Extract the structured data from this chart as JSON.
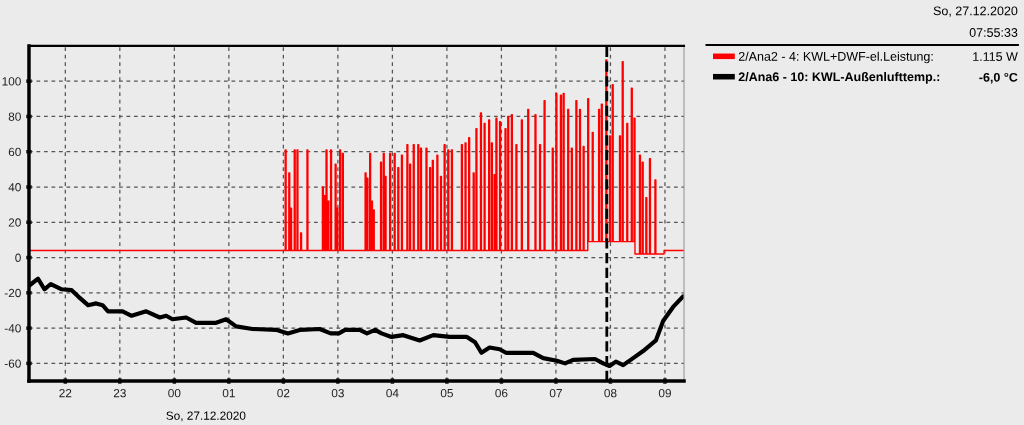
{
  "chart_data": {
    "type": "line",
    "xlabel": "So, 27.12.2020",
    "xlim": [
      "2020-12-26T21:20",
      "2020-12-27T09:21"
    ],
    "xticks": [
      {
        "value": "2020-12-26T22:00",
        "label": "22"
      },
      {
        "value": "2020-12-26T23:00",
        "label": "23"
      },
      {
        "value": "2020-12-27T00:00",
        "label": "00"
      },
      {
        "value": "2020-12-27T01:00",
        "label": "01"
      },
      {
        "value": "2020-12-27T02:00",
        "label": "02"
      },
      {
        "value": "2020-12-27T03:00",
        "label": "03"
      },
      {
        "value": "2020-12-27T04:00",
        "label": "04"
      },
      {
        "value": "2020-12-27T05:00",
        "label": "05"
      },
      {
        "value": "2020-12-27T06:00",
        "label": "06"
      },
      {
        "value": "2020-12-27T07:00",
        "label": "07"
      },
      {
        "value": "2020-12-27T08:00",
        "label": "08"
      },
      {
        "value": "2020-12-27T09:00",
        "label": "09"
      }
    ],
    "ylim": [
      -70,
      120
    ],
    "yticks": [
      -60,
      -40,
      -20,
      0,
      20,
      40,
      60,
      80,
      100
    ],
    "grid": true,
    "legend": "right",
    "series": [
      {
        "name": "2/Ana2 - 4: KWL+DWF-el.Leistung:",
        "color": "#ff0000",
        "type": "step",
        "x": [
          "2020-12-26T21:20",
          "2020-12-27T02:02",
          "2020-12-27T02:03",
          "2020-12-27T02:06",
          "2020-12-27T02:07",
          "2020-12-27T02:08",
          "2020-12-27T02:09",
          "2020-12-27T02:12",
          "2020-12-27T02:13",
          "2020-12-27T02:15",
          "2020-12-27T02:16",
          "2020-12-27T02:19",
          "2020-12-27T02:20",
          "2020-12-27T02:26",
          "2020-12-27T02:27",
          "2020-12-27T02:43",
          "2020-12-27T02:44",
          "2020-12-27T02:45",
          "2020-12-27T02:46",
          "2020-12-27T02:47",
          "2020-12-27T02:48",
          "2020-12-27T02:49",
          "2020-12-27T02:50",
          "2020-12-27T02:52",
          "2020-12-27T02:53",
          "2020-12-27T02:57",
          "2020-12-27T02:58",
          "2020-12-27T02:59",
          "2020-12-27T03:00",
          "2020-12-27T03:02",
          "2020-12-27T03:03",
          "2020-12-27T03:05",
          "2020-12-27T03:06",
          "2020-12-27T03:30",
          "2020-12-27T03:31",
          "2020-12-27T03:32",
          "2020-12-27T03:33",
          "2020-12-27T03:35",
          "2020-12-27T03:36",
          "2020-12-27T03:37",
          "2020-12-27T03:38",
          "2020-12-27T03:39",
          "2020-12-27T03:40",
          "2020-12-27T03:47",
          "2020-12-27T03:48",
          "2020-12-27T03:50",
          "2020-12-27T03:51",
          "2020-12-27T03:52",
          "2020-12-27T03:53",
          "2020-12-27T03:57",
          "2020-12-27T03:58",
          "2020-12-27T04:02",
          "2020-12-27T04:03",
          "2020-12-27T04:06",
          "2020-12-27T04:07",
          "2020-12-27T04:10",
          "2020-12-27T04:11",
          "2020-12-27T04:16",
          "2020-12-27T04:17",
          "2020-12-27T04:19",
          "2020-12-27T04:20",
          "2020-12-27T04:23",
          "2020-12-27T04:24",
          "2020-12-27T04:28",
          "2020-12-27T04:29",
          "2020-12-27T04:31",
          "2020-12-27T04:32",
          "2020-12-27T04:37",
          "2020-12-27T04:38",
          "2020-12-27T04:41",
          "2020-12-27T04:42",
          "2020-12-27T04:44",
          "2020-12-27T04:45",
          "2020-12-27T04:49",
          "2020-12-27T04:50",
          "2020-12-27T04:53",
          "2020-12-27T04:54",
          "2020-12-27T04:57",
          "2020-12-27T04:58",
          "2020-12-27T05:01",
          "2020-12-27T05:02",
          "2020-12-27T05:05",
          "2020-12-27T05:06",
          "2020-12-27T05:16",
          "2020-12-27T05:17",
          "2020-12-27T05:20",
          "2020-12-27T05:21",
          "2020-12-27T05:24",
          "2020-12-27T05:25",
          "2020-12-27T05:29",
          "2020-12-27T05:30",
          "2020-12-27T05:32",
          "2020-12-27T05:33",
          "2020-12-27T05:37",
          "2020-12-27T05:38",
          "2020-12-27T05:41",
          "2020-12-27T05:42",
          "2020-12-27T05:46",
          "2020-12-27T05:47",
          "2020-12-27T05:49",
          "2020-12-27T05:50",
          "2020-12-27T05:52",
          "2020-12-27T05:53",
          "2020-12-27T05:54",
          "2020-12-27T05:55",
          "2020-12-27T05:58",
          "2020-12-27T05:59",
          "2020-12-27T06:04",
          "2020-12-27T06:05",
          "2020-12-27T06:07",
          "2020-12-27T06:08",
          "2020-12-27T06:11",
          "2020-12-27T06:12",
          "2020-12-27T06:16",
          "2020-12-27T06:17",
          "2020-12-27T06:22",
          "2020-12-27T06:23",
          "2020-12-27T06:29",
          "2020-12-27T06:30",
          "2020-12-27T06:37",
          "2020-12-27T06:38",
          "2020-12-27T06:42",
          "2020-12-27T06:43",
          "2020-12-27T06:47",
          "2020-12-27T06:48",
          "2020-12-27T06:56",
          "2020-12-27T06:57",
          "2020-12-27T07:00",
          "2020-12-27T07:01",
          "2020-12-27T07:05",
          "2020-12-27T07:06",
          "2020-12-27T07:08",
          "2020-12-27T07:09",
          "2020-12-27T07:13",
          "2020-12-27T07:14",
          "2020-12-27T07:17",
          "2020-12-27T07:18",
          "2020-12-27T07:22",
          "2020-12-27T07:23",
          "2020-12-27T07:26",
          "2020-12-27T07:27",
          "2020-12-27T07:30",
          "2020-12-27T07:31",
          "2020-12-27T07:35",
          "2020-12-27T07:36",
          "2020-12-27T07:40",
          "2020-12-27T07:41",
          "2020-12-27T07:47",
          "2020-12-27T07:48",
          "2020-12-27T07:50",
          "2020-12-27T07:51",
          "2020-12-27T07:55",
          "2020-12-27T07:56",
          "2020-12-27T07:59",
          "2020-12-27T08:00",
          "2020-12-27T08:02",
          "2020-12-27T08:03",
          "2020-12-27T08:10",
          "2020-12-27T08:11",
          "2020-12-27T08:13",
          "2020-12-27T08:14",
          "2020-12-27T08:18",
          "2020-12-27T08:19",
          "2020-12-27T08:23",
          "2020-12-27T08:24",
          "2020-12-27T08:26",
          "2020-12-27T08:27",
          "2020-12-27T08:32",
          "2020-12-27T08:33",
          "2020-12-27T08:35",
          "2020-12-27T08:36",
          "2020-12-27T08:39",
          "2020-12-27T08:40",
          "2020-12-27T08:43",
          "2020-12-27T08:44",
          "2020-12-27T08:49",
          "2020-12-27T08:50",
          "2020-12-27T08:59",
          "2020-12-27T09:21"
        ],
        "values": [
          4,
          61,
          4,
          48,
          4,
          28,
          4,
          61,
          4,
          61,
          4,
          14,
          4,
          61,
          4,
          40,
          4,
          35,
          4,
          61,
          4,
          32,
          4,
          61,
          4,
          53,
          4,
          28,
          4,
          61,
          4,
          59,
          4,
          48,
          4,
          45,
          4,
          59,
          4,
          32,
          4,
          27,
          4,
          54,
          4,
          59,
          4,
          46,
          4,
          59,
          4,
          59,
          4,
          51,
          4,
          58,
          4,
          64,
          4,
          53,
          4,
          64,
          4,
          64,
          4,
          62,
          4,
          62,
          4,
          51,
          4,
          55,
          4,
          58,
          4,
          46,
          4,
          64,
          4,
          61,
          4,
          61,
          4,
          64,
          4,
          65,
          4,
          68,
          4,
          48,
          4,
          73,
          4,
          82,
          4,
          76,
          4,
          78,
          4,
          65,
          4,
          47,
          4,
          79,
          4,
          77,
          4,
          73,
          4,
          80,
          4,
          81,
          4,
          64,
          4,
          78,
          4,
          84,
          4,
          81,
          4,
          64,
          4,
          89,
          4,
          62,
          4,
          93,
          4,
          92,
          4,
          93,
          4,
          84,
          4,
          62,
          4,
          89,
          4,
          84,
          4,
          63,
          4,
          90,
          9,
          71,
          9,
          84,
          9,
          87,
          9,
          112,
          9,
          69,
          9,
          98,
          9,
          69,
          9,
          111,
          9,
          76,
          9,
          96,
          9,
          79,
          2,
          58,
          2,
          54,
          2,
          34,
          2,
          56,
          2,
          44,
          2,
          4,
          4
        ]
      },
      {
        "name": "2/Ana6 - 10: KWL-Außenlufttemp.:",
        "color": "#000000",
        "x": [
          "2020-12-26T21:20",
          "2020-12-26T21:30",
          "2020-12-26T21:37",
          "2020-12-26T21:44",
          "2020-12-26T21:56",
          "2020-12-26T22:07",
          "2020-12-26T22:14",
          "2020-12-26T22:25",
          "2020-12-26T22:34",
          "2020-12-26T22:41",
          "2020-12-26T22:47",
          "2020-12-26T23:03",
          "2020-12-26T23:13",
          "2020-12-26T23:29",
          "2020-12-26T23:44",
          "2020-12-26T23:51",
          "2020-12-26T23:58",
          "2020-12-27T00:13",
          "2020-12-27T00:24",
          "2020-12-27T00:46",
          "2020-12-27T00:57",
          "2020-12-27T01:08",
          "2020-12-27T01:26",
          "2020-12-27T01:52",
          "2020-12-27T02:05",
          "2020-12-27T02:19",
          "2020-12-27T02:40",
          "2020-12-27T02:52",
          "2020-12-27T03:01",
          "2020-12-27T03:08",
          "2020-12-27T03:24",
          "2020-12-27T03:32",
          "2020-12-27T03:41",
          "2020-12-27T03:48",
          "2020-12-27T03:59",
          "2020-12-27T04:12",
          "2020-12-27T04:30",
          "2020-12-27T04:45",
          "2020-12-27T05:03",
          "2020-12-27T05:22",
          "2020-12-27T05:31",
          "2020-12-27T05:38",
          "2020-12-27T05:47",
          "2020-12-27T05:58",
          "2020-12-27T06:05",
          "2020-12-27T06:35",
          "2020-12-27T06:46",
          "2020-12-27T07:01",
          "2020-12-27T07:10",
          "2020-12-27T07:19",
          "2020-12-27T07:43",
          "2020-12-27T07:52",
          "2020-12-27T07:59",
          "2020-12-27T08:06",
          "2020-12-27T08:14",
          "2020-12-27T08:25",
          "2020-12-27T08:36",
          "2020-12-27T08:50",
          "2020-12-27T08:58",
          "2020-12-27T09:09",
          "2020-12-27T09:20"
        ],
        "values": [
          -16,
          -12,
          -18,
          -15,
          -18,
          -18.5,
          -22,
          -27,
          -26,
          -27,
          -30.5,
          -30.5,
          -33,
          -30.5,
          -34,
          -33,
          -35,
          -34,
          -37,
          -37,
          -35,
          -39,
          -40.5,
          -41,
          -43,
          -41,
          -40.5,
          -43,
          -43,
          -41,
          -41,
          -43,
          -41,
          -43,
          -45,
          -44,
          -47,
          -44,
          -45,
          -45,
          -48,
          -54,
          -51,
          -52,
          -54,
          -54,
          -57,
          -58.5,
          -60,
          -58,
          -57.5,
          -60,
          -61.5,
          -59,
          -61,
          -57,
          -53,
          -47,
          -36,
          -28,
          -22
        ]
      }
    ],
    "ref_lines": [
      {
        "axis": "x",
        "value": "2020-12-27T07:56",
        "color": "#000000",
        "line_style": "dashed"
      }
    ],
    "annotations": [
      "So, 27.12.2020",
      "07:55:33",
      "1.115 W",
      "-6,0 °C"
    ]
  }
}
